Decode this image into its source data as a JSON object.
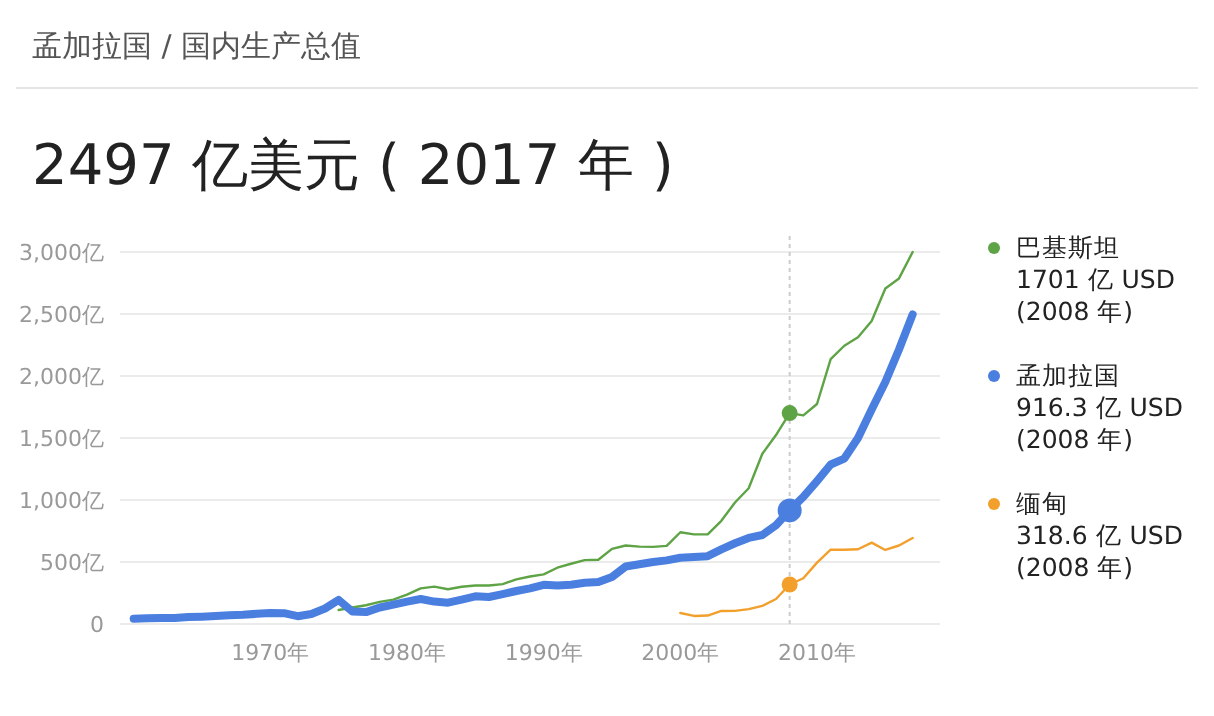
{
  "chart_data": {
    "type": "line",
    "subtitle": "孟加拉国 / 国内生产总值",
    "title": "2497 亿美元 ( 2017 年 )",
    "xlim": [
      1959,
      2019
    ],
    "xticks": [
      {
        "value": 1970,
        "label": "1970年"
      },
      {
        "value": 1980,
        "label": "1980年"
      },
      {
        "value": 1990,
        "label": "1990年"
      },
      {
        "value": 2000,
        "label": "2000年"
      },
      {
        "value": 2010,
        "label": "2010年"
      }
    ],
    "ylim": [
      0,
      3000
    ],
    "yticks": [
      0,
      {
        "value": 500,
        "label": "500亿"
      },
      {
        "value": 1000,
        "label": "1,000亿"
      },
      {
        "value": 1500,
        "label": "1,500亿"
      },
      {
        "value": 2000,
        "label": "2,000亿"
      },
      {
        "value": 2500,
        "label": "2,500亿"
      },
      {
        "value": 3000,
        "label": "3,000亿"
      }
    ],
    "grid": "y",
    "legend": "right",
    "marker": "none",
    "line_style": "solid",
    "series": [
      {
        "name": "巴基斯坦",
        "color": "#5ea446",
        "x": [
          1975,
          1976,
          1977,
          1978,
          1979,
          1980,
          1981,
          1982,
          1983,
          1984,
          1985,
          1986,
          1987,
          1988,
          1989,
          1990,
          1991,
          1992,
          1993,
          1994,
          1995,
          1996,
          1997,
          1998,
          1999,
          2000,
          2001,
          2002,
          2003,
          2004,
          2005,
          2006,
          2007,
          2008,
          2009,
          2010,
          2011,
          2012,
          2013,
          2014,
          2015,
          2016,
          2017
        ],
        "values": [
          113,
          133,
          151,
          178,
          197,
          237,
          287,
          301,
          280,
          300,
          311,
          311,
          322,
          360,
          383,
          400,
          454,
          486,
          515,
          518,
          606,
          633,
          624,
          622,
          630,
          740,
          723,
          723,
          832,
          980,
          1095,
          1373,
          1524,
          1701,
          1682,
          1774,
          2136,
          2244,
          2312,
          2444,
          2706,
          2787,
          3000
        ]
      },
      {
        "name": "孟加拉国",
        "color": "#4a7fe0",
        "x": [
          1960,
          1961,
          1962,
          1963,
          1964,
          1965,
          1966,
          1967,
          1968,
          1969,
          1970,
          1971,
          1972,
          1973,
          1974,
          1975,
          1976,
          1977,
          1978,
          1979,
          1980,
          1981,
          1982,
          1983,
          1984,
          1985,
          1986,
          1987,
          1988,
          1989,
          1990,
          1991,
          1992,
          1993,
          1994,
          1995,
          1996,
          1997,
          1998,
          1999,
          2000,
          2001,
          2002,
          2003,
          2004,
          2005,
          2006,
          2007,
          2008,
          2009,
          2010,
          2011,
          2012,
          2013,
          2014,
          2015,
          2016,
          2017
        ],
        "values": [
          43,
          46,
          49,
          49,
          56,
          59,
          64,
          71,
          74,
          82,
          89,
          87,
          63,
          81,
          125,
          194,
          101,
          96,
          133,
          156,
          181,
          202,
          181,
          172,
          197,
          223,
          218,
          241,
          266,
          287,
          316,
          310,
          317,
          332,
          338,
          379,
          464,
          482,
          500,
          513,
          534,
          540,
          547,
          602,
          651,
          694,
          718,
          796,
          916.3,
          1025,
          1153,
          1286,
          1334,
          1500,
          1729,
          1951,
          2214,
          2497
        ]
      },
      {
        "name": "缅甸",
        "color": "#f29f2c",
        "x": [
          2000,
          2001,
          2002,
          2003,
          2004,
          2005,
          2006,
          2007,
          2008,
          2009,
          2010,
          2011,
          2012,
          2013,
          2014,
          2015,
          2016,
          2017
        ],
        "values": [
          89,
          65,
          68,
          105,
          106,
          120,
          146,
          202,
          318.6,
          369,
          495,
          600,
          599,
          603,
          656,
          597,
          633,
          693
        ]
      }
    ],
    "ref_lines": [
      {
        "axis": "x",
        "value": 2008,
        "color": "#cccccc",
        "line_style": "dotted"
      }
    ],
    "annotations": [
      "1701 亿 USD\n(2008 年)",
      "916.3 亿 USD\n(2008 年)",
      "318.6 亿 USD\n(2008 年)"
    ]
  }
}
